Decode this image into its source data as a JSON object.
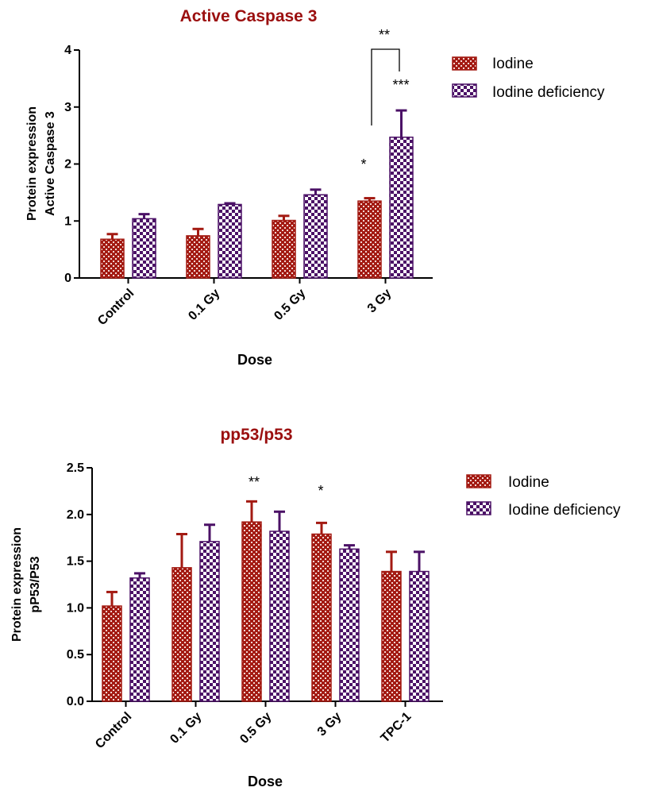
{
  "colors": {
    "iodine": "#a31a12",
    "iodine_deficiency": "#4b1166",
    "title": "#9b0f0f",
    "axis": "#000000"
  },
  "chart_data": [
    {
      "type": "bar",
      "title": "Active Caspase 3",
      "xlabel": "Dose",
      "ylabel": [
        "Protein expression",
        "Active Caspase 3"
      ],
      "ylim": [
        0,
        4
      ],
      "yticks": [
        "0",
        "1",
        "2",
        "3",
        "4"
      ],
      "categories": [
        "Control",
        "0.1 Gy",
        "0.5 Gy",
        "3 Gy"
      ],
      "legend_position": "top-right",
      "series": [
        {
          "name": "Iodine",
          "values": [
            0.68,
            0.74,
            1.01,
            1.35
          ],
          "errors": [
            0.09,
            0.12,
            0.08,
            0.05
          ]
        },
        {
          "name": "Iodine deficiency",
          "values": [
            1.04,
            1.29,
            1.46,
            2.47
          ],
          "errors": [
            0.08,
            0.02,
            0.09,
            0.47
          ]
        }
      ],
      "annotations": [
        {
          "text": "*",
          "category": "3 Gy",
          "series": "Iodine"
        },
        {
          "text": "***",
          "category": "3 Gy",
          "series": "Iodine deficiency"
        },
        {
          "text": "**",
          "category": "3 Gy",
          "series": "both (bracket)"
        }
      ]
    },
    {
      "type": "bar",
      "title": "pp53/p53",
      "xlabel": "Dose",
      "ylabel": [
        "Protein expression",
        "pP53/P53"
      ],
      "ylim": [
        0,
        2.5
      ],
      "yticks": [
        "0.0",
        "0.5",
        "1.0",
        "1.5",
        "2.0",
        "2.5"
      ],
      "categories": [
        "Control",
        "0.1 Gy",
        "0.5 Gy",
        "3 Gy",
        "TPC-1"
      ],
      "legend_position": "top-right",
      "series": [
        {
          "name": "Iodine",
          "values": [
            1.02,
            1.43,
            1.92,
            1.79,
            1.39
          ],
          "errors": [
            0.15,
            0.36,
            0.22,
            0.12,
            0.21
          ]
        },
        {
          "name": "Iodine deficiency",
          "values": [
            1.32,
            1.71,
            1.82,
            1.63,
            1.39
          ],
          "errors": [
            0.05,
            0.18,
            0.21,
            0.04,
            0.21
          ]
        }
      ],
      "annotations": [
        {
          "text": "**",
          "category": "0.5 Gy",
          "series": "Iodine"
        },
        {
          "text": "*",
          "category": "3 Gy",
          "series": "Iodine"
        }
      ]
    }
  ]
}
